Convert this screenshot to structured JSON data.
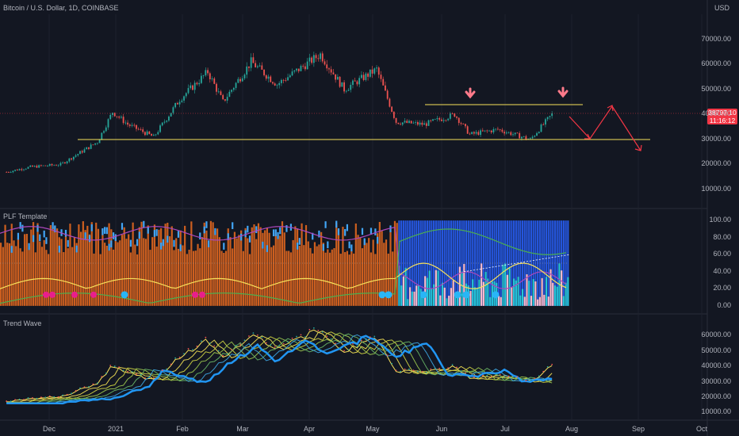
{
  "header": {
    "symbol_title": "Bitcoin / U.S. Dollar, 1D, COINBASE",
    "currency": "USD"
  },
  "price_box": {
    "price": "38797.10",
    "countdown": "11:16:12",
    "color": "#f23645"
  },
  "panes": {
    "main": {
      "y_ticks": [
        "70000.00",
        "60000.00",
        "50000.00",
        "40000.00",
        "30000.00",
        "20000.00",
        "10000.00"
      ],
      "y_values": [
        70000,
        60000,
        50000,
        40000,
        30000,
        20000,
        10000
      ],
      "ylim": [
        4000,
        80000
      ]
    },
    "plf": {
      "title": "PLF Template",
      "y_ticks": [
        "100.00",
        "80.00",
        "60.00",
        "40.00",
        "20.00",
        "0.00"
      ],
      "y_values": [
        100,
        80,
        60,
        40,
        20,
        0
      ],
      "ylim": [
        -2,
        102
      ]
    },
    "trend": {
      "title": "Trend Wave",
      "y_ticks": [
        "60000.00",
        "50000.00",
        "40000.00",
        "30000.00",
        "20000.00",
        "10000.00"
      ],
      "y_values": [
        60000,
        50000,
        40000,
        30000,
        20000,
        10000
      ],
      "ylim": [
        6000,
        68000
      ]
    }
  },
  "x_axis": {
    "ticks": [
      "Dec",
      "2021",
      "Feb",
      "Mar",
      "Apr",
      "May",
      "Jun",
      "Jul",
      "Aug",
      "Sep",
      "Oct"
    ]
  },
  "chart_data": {
    "type": "line",
    "x": [
      "2020-11-20",
      "2020-12-01",
      "2020-12-15",
      "2021-01-01",
      "2021-01-08",
      "2021-01-15",
      "2021-01-27",
      "2021-02-08",
      "2021-02-21",
      "2021-02-28",
      "2021-03-13",
      "2021-03-25",
      "2021-04-14",
      "2021-04-25",
      "2021-05-10",
      "2021-05-19",
      "2021-06-01",
      "2021-06-15",
      "2021-06-22",
      "2021-07-05",
      "2021-07-20",
      "2021-07-30"
    ],
    "series": [
      {
        "values": [
          17000,
          19000,
          20000,
          29000,
          41000,
          36000,
          31000,
          46000,
          57000,
          45000,
          61000,
          52000,
          64000,
          50000,
          58000,
          37000,
          36000,
          40000,
          32000,
          34000,
          30000,
          40000
        ]
      }
    ],
    "horizontal_lines": [
      29500,
      42000
    ],
    "colors": {
      "up": "#26a69a",
      "down": "#ef5350",
      "support": "#f7e05a",
      "projection": "#f23645"
    }
  }
}
